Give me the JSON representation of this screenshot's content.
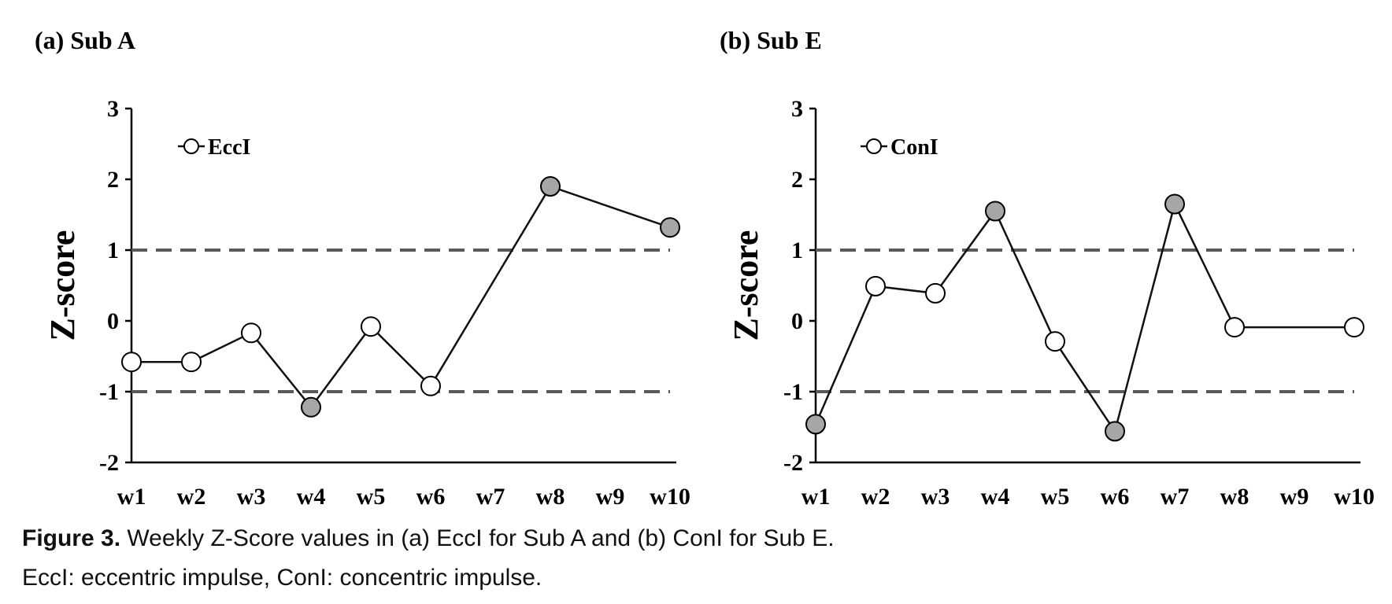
{
  "chart_data": [
    {
      "type": "line",
      "title": "(a) Sub A",
      "ylabel": "Z-score",
      "xlabel": "",
      "categories": [
        "w1",
        "w2",
        "w3",
        "w4",
        "w5",
        "w6",
        "w7",
        "w8",
        "w9",
        "w10"
      ],
      "yticks": [
        "3",
        "2",
        "1",
        "0",
        "-1",
        "-2"
      ],
      "ylim": [
        -2,
        3
      ],
      "reference_lines": [
        1,
        -1
      ],
      "legend": {
        "label": "EccI",
        "position": "top-left"
      },
      "series": [
        {
          "name": "EccI",
          "points": [
            {
              "x": "w1",
              "y": -0.58,
              "highlight": false
            },
            {
              "x": "w2",
              "y": -0.58,
              "highlight": false
            },
            {
              "x": "w3",
              "y": -0.17,
              "highlight": false
            },
            {
              "x": "w4",
              "y": -1.22,
              "highlight": true
            },
            {
              "x": "w5",
              "y": -0.08,
              "highlight": false
            },
            {
              "x": "w6",
              "y": -0.92,
              "highlight": false
            },
            {
              "x": "w8",
              "y": 1.9,
              "highlight": true
            },
            {
              "x": "w10",
              "y": 1.32,
              "highlight": true
            }
          ]
        }
      ]
    },
    {
      "type": "line",
      "title": "(b) Sub E",
      "ylabel": "Z-score",
      "xlabel": "",
      "categories": [
        "w1",
        "w2",
        "w3",
        "w4",
        "w5",
        "w6",
        "w7",
        "w8",
        "w9",
        "w10"
      ],
      "yticks": [
        "3",
        "2",
        "1",
        "0",
        "-1",
        "-2"
      ],
      "ylim": [
        -2,
        3
      ],
      "reference_lines": [
        1,
        -1
      ],
      "legend": {
        "label": "ConI",
        "position": "top-left"
      },
      "series": [
        {
          "name": "ConI",
          "points": [
            {
              "x": "w1",
              "y": -1.46,
              "highlight": true
            },
            {
              "x": "w2",
              "y": 0.49,
              "highlight": false
            },
            {
              "x": "w3",
              "y": 0.39,
              "highlight": false
            },
            {
              "x": "w4",
              "y": 1.55,
              "highlight": true
            },
            {
              "x": "w5",
              "y": -0.29,
              "highlight": false
            },
            {
              "x": "w6",
              "y": -1.56,
              "highlight": true
            },
            {
              "x": "w7",
              "y": 1.65,
              "highlight": true
            },
            {
              "x": "w8",
              "y": -0.09,
              "highlight": false
            },
            {
              "x": "w10",
              "y": -0.09,
              "highlight": false
            }
          ]
        }
      ]
    }
  ],
  "colors": {
    "line": "#111111",
    "marker_open": "#ffffff",
    "marker_highlight": "#a6a6a6",
    "reference_line": "#595959"
  },
  "caption": {
    "label": "Figure 3.",
    "text": " Weekly Z-Score values in (a) EccI for Sub A and (b) ConI for Sub E.",
    "line2": "EccI: eccentric impulse, ConI: concentric impulse."
  }
}
